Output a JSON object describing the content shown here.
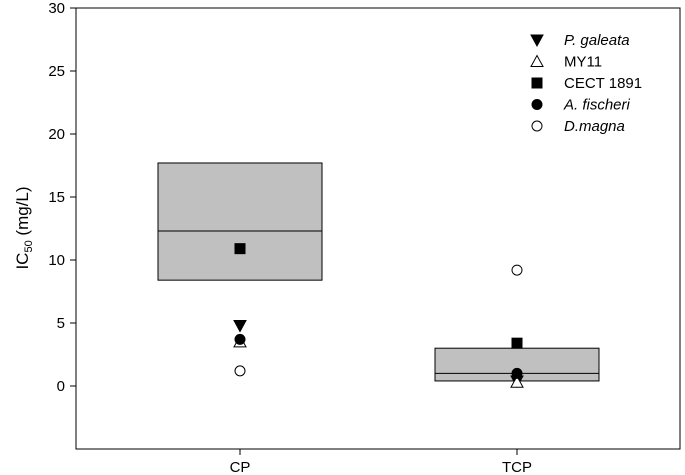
{
  "chart_data": {
    "type": "box",
    "title": "",
    "xlabel": "",
    "ylabel": {
      "prefix": "IC",
      "subscript": "50",
      "suffix": " (mg/L)"
    },
    "ylim": [
      -5,
      30
    ],
    "yticks": [
      0,
      5,
      10,
      15,
      20,
      25,
      30
    ],
    "categories": [
      "CP",
      "TCP"
    ],
    "boxes": [
      {
        "category": "CP",
        "q1": 8.4,
        "median": 12.3,
        "q3": 17.7
      },
      {
        "category": "TCP",
        "q1": 0.4,
        "median": 1.0,
        "q3": 3.0
      }
    ],
    "series": [
      {
        "name": "P. galeata",
        "italic": true,
        "marker": "triangle-down",
        "filled": true,
        "values": [
          4.8,
          0.4
        ]
      },
      {
        "name": "MY11",
        "italic": false,
        "marker": "triangle-up",
        "filled": false,
        "values": [
          3.5,
          0.3
        ]
      },
      {
        "name": "CECT 1891",
        "italic": false,
        "marker": "square",
        "filled": true,
        "values": [
          10.9,
          3.4
        ]
      },
      {
        "name": "A. fischeri",
        "italic": true,
        "marker": "circle",
        "filled": true,
        "values": [
          3.7,
          1.0
        ]
      },
      {
        "name": "D.magna",
        "italic": true,
        "marker": "circle",
        "filled": false,
        "values": [
          1.2,
          9.2
        ]
      }
    ],
    "box_fill": "#c0c0c0",
    "grid": false,
    "legend_position": "top-right"
  }
}
